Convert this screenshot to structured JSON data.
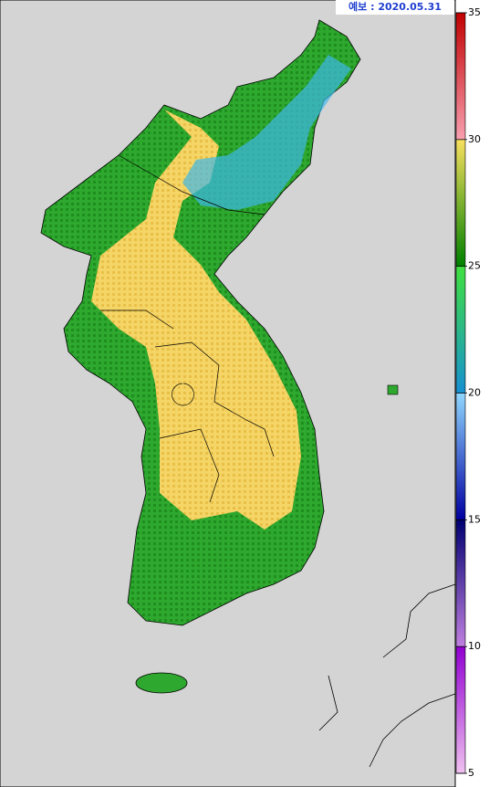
{
  "map": {
    "label": "예보 : 2020.05.31",
    "colorbar": {
      "range": [
        5,
        35
      ],
      "ticks": [
        5,
        10,
        15,
        20,
        25,
        30,
        35
      ],
      "band_colors": [
        [
          "#f0c0f0",
          "#9000d0"
        ],
        [
          "#c080e0",
          "#000070"
        ],
        [
          "#0000a0",
          "#90d8ff"
        ],
        [
          "#1890d0",
          "#40e040"
        ],
        [
          "#008000",
          "#f8e060"
        ],
        [
          "#f8a0b0",
          "#c00000"
        ]
      ]
    }
  }
}
